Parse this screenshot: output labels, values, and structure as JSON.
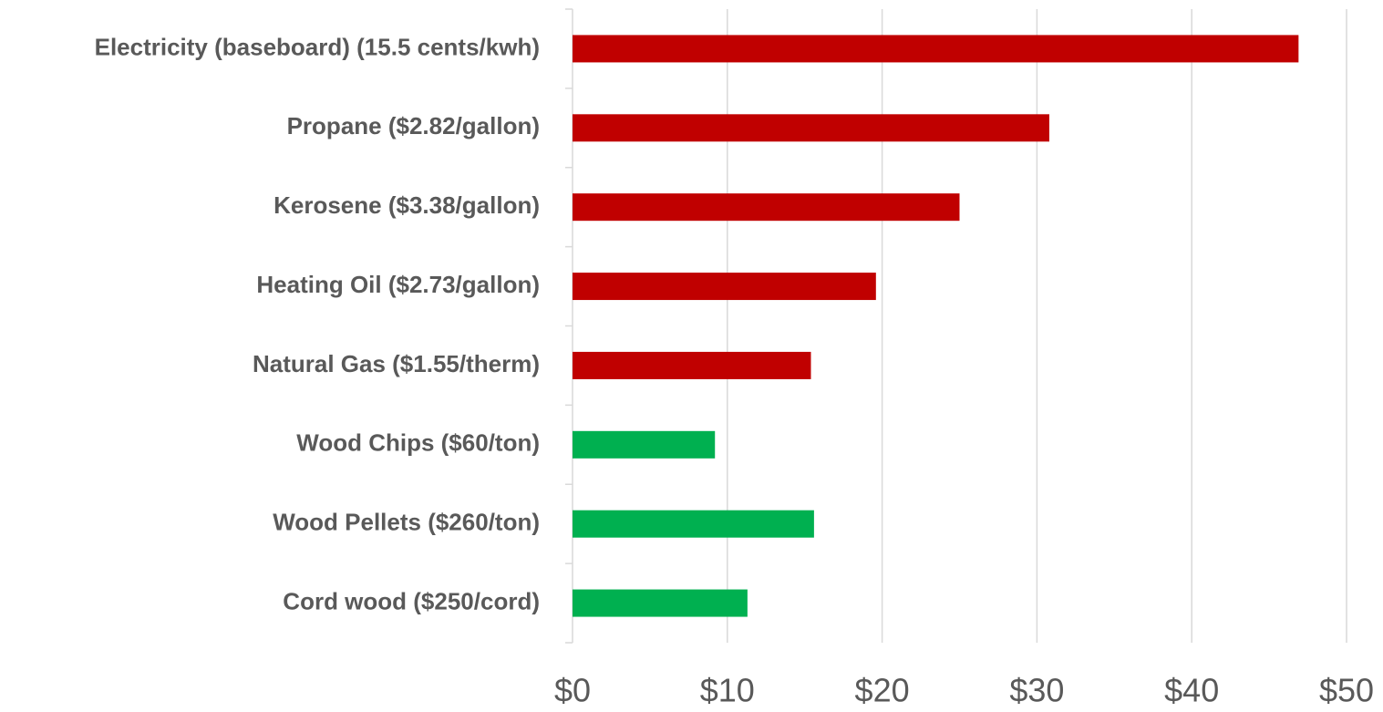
{
  "chart_data": {
    "type": "barh",
    "categories": [
      "Electricity (baseboard) (15.5 cents/kwh)",
      "Propane ($2.82/gallon)",
      "Kerosene ($3.38/gallon)",
      "Heating Oil ($2.73/gallon)",
      "Natural Gas ($1.55/therm)",
      "Wood Chips ($60/ton)",
      "Wood Pellets ($260/ton)",
      "Cord wood ($250/cord)"
    ],
    "values": [
      46.9,
      30.8,
      25.0,
      19.6,
      15.4,
      9.2,
      15.6,
      11.3
    ],
    "colors": [
      "#c00000",
      "#c00000",
      "#c00000",
      "#c00000",
      "#c00000",
      "#00b050",
      "#00b050",
      "#00b050"
    ],
    "xlim": [
      0,
      50
    ],
    "xticks": [
      {
        "value": 0,
        "label": "$0"
      },
      {
        "value": 10,
        "label": "$10"
      },
      {
        "value": 20,
        "label": "$20"
      },
      {
        "value": 30,
        "label": "$30"
      },
      {
        "value": 40,
        "label": "$40"
      },
      {
        "value": 50,
        "label": "$50"
      }
    ],
    "grid": true
  }
}
